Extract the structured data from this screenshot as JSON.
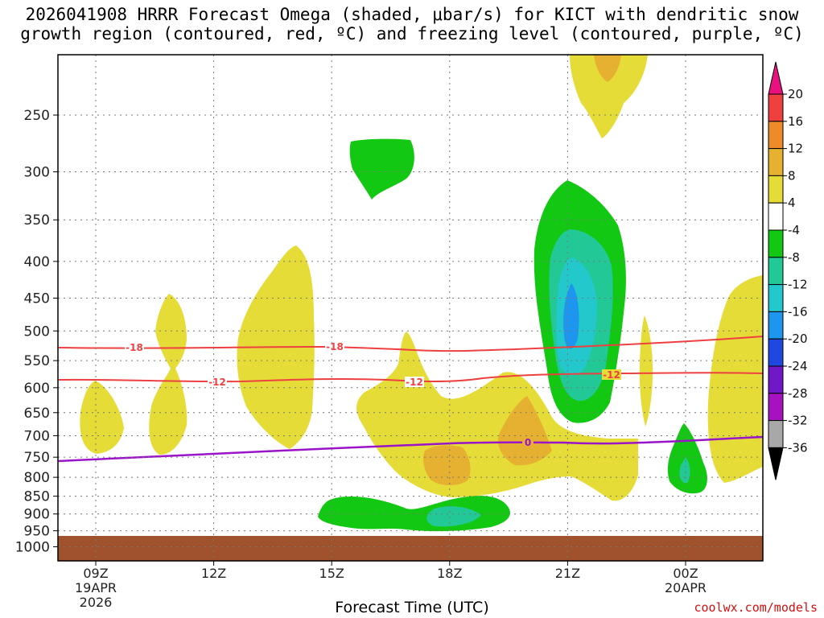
{
  "chart_data": {
    "type": "contour",
    "title_line1": "2026041908 HRRR Forecast Omega (shaded, μbar/s) for KICT with dendritic snow",
    "title_line2": "growth region (contoured, red, ºC) and freezing level (contoured, purple, ºC)",
    "xlabel": "Forecast Time (UTC)",
    "credit": "coolwx.com/models",
    "y_levels": [
      "250",
      "300",
      "350",
      "400",
      "450",
      "500",
      "550",
      "600",
      "650",
      "700",
      "750",
      "800",
      "850",
      "900",
      "950",
      "1000"
    ],
    "x_ticks": [
      {
        "label": "09Z",
        "sub1": "19APR",
        "sub2": "2026"
      },
      {
        "label": "12Z",
        "sub1": "",
        "sub2": ""
      },
      {
        "label": "15Z",
        "sub1": "",
        "sub2": ""
      },
      {
        "label": "18Z",
        "sub1": "",
        "sub2": ""
      },
      {
        "label": "21Z",
        "sub1": "",
        "sub2": ""
      },
      {
        "label": "00Z",
        "sub1": "20APR",
        "sub2": ""
      }
    ],
    "colorbar": {
      "labels": [
        "20",
        "16",
        "12",
        "8",
        "4",
        "-4",
        "-8",
        "-12",
        "-16",
        "-20",
        "-24",
        "-28",
        "-32",
        "-36"
      ],
      "colors": [
        "#e8117f",
        "#ef4040",
        "#ee8a2a",
        "#e6b030",
        "#e6dc38",
        "#ffffff",
        "#12c812",
        "#22c896",
        "#22c8cc",
        "#1e96f0",
        "#1f48e0",
        "#7018c8",
        "#a612c0",
        "#a8a8a8",
        "#000000"
      ]
    },
    "contours": [
      {
        "name": "dendritic -18",
        "value": "-18",
        "color": "#ee4040"
      },
      {
        "name": "dendritic -12",
        "value": "-12",
        "color": "#ee4040"
      },
      {
        "name": "freezing level 0",
        "value": "0",
        "color": "#9a14c8"
      }
    ]
  }
}
